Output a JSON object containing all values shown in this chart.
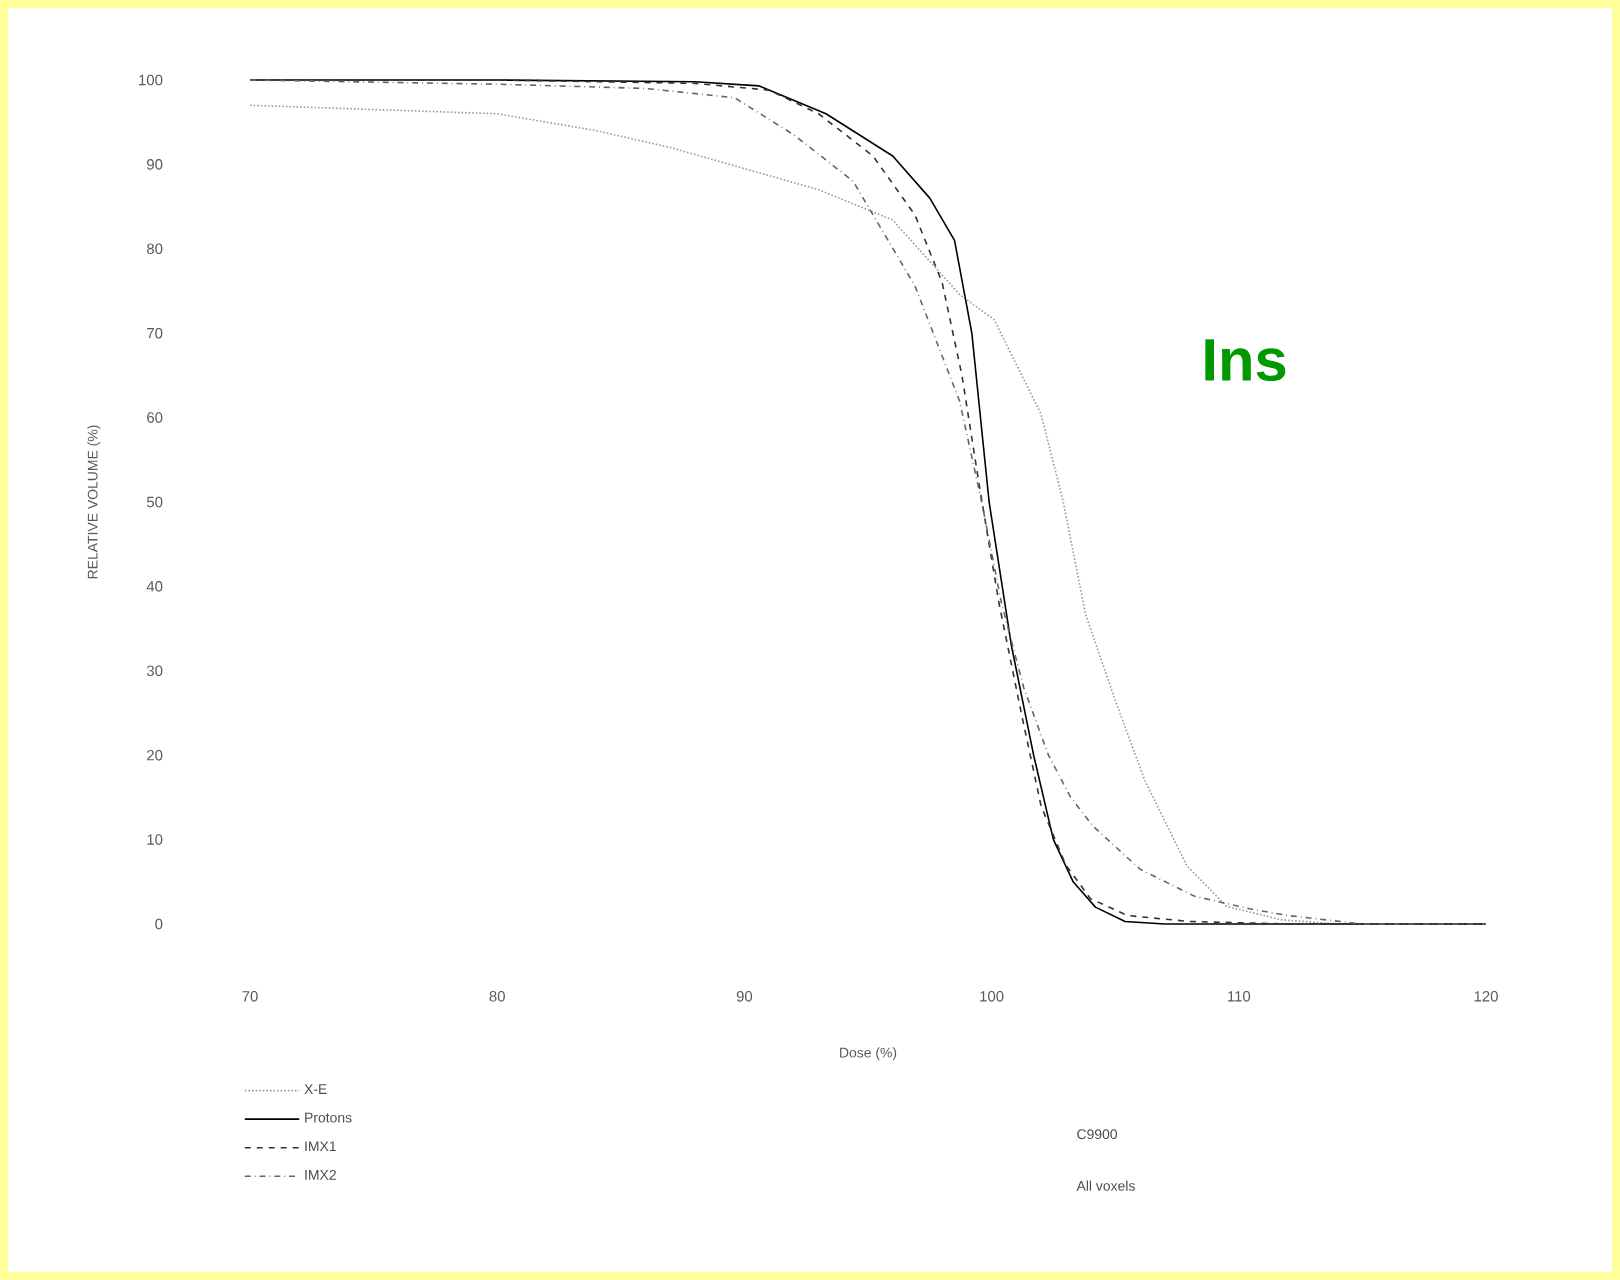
{
  "chart_data": {
    "type": "line",
    "xlabel": "Dose (%)",
    "ylabel": "RELATIVE VOLUME (%)",
    "xlim": [
      70,
      120
    ],
    "ylim": [
      0,
      100
    ],
    "xticks": [
      70,
      80,
      90,
      100,
      110,
      120
    ],
    "yticks": [
      0,
      10,
      20,
      30,
      40,
      50,
      60,
      70,
      80,
      90,
      100
    ],
    "legend": "bottom left",
    "annotations": [
      "Ins",
      "C9900",
      "All voxels"
    ],
    "series": [
      {
        "name": "X-E",
        "color": "#999999",
        "line_style": "dotted",
        "x": [
          70,
          75,
          80,
          84,
          87,
          90.6,
          93,
          96,
          98.7,
          100.1,
          102,
          102.9,
          103.8,
          105,
          106.2,
          107.9,
          109.5,
          111.7,
          114,
          118,
          120
        ],
        "values": [
          97,
          96.5,
          96,
          94,
          92,
          89,
          87,
          83.4,
          74.6,
          71.6,
          60.4,
          50,
          36.7,
          26.5,
          17,
          6.9,
          2.1,
          0.5,
          0,
          0,
          0
        ]
      },
      {
        "name": "Protons",
        "color": "#000000",
        "line_style": "solid",
        "x": [
          70,
          80,
          88,
          90.6,
          93.3,
          96,
          97.5,
          98.5,
          99.2,
          99.9,
          100.8,
          101.7,
          102.5,
          103.3,
          104.2,
          105.4,
          107,
          112,
          120
        ],
        "values": [
          100,
          100,
          99.8,
          99.3,
          96,
          91,
          86,
          81,
          70,
          50,
          33,
          20,
          10,
          5,
          2,
          0.3,
          0,
          0,
          0
        ]
      },
      {
        "name": "IMX1",
        "color": "#333333",
        "line_style": "dashed",
        "x": [
          70,
          80,
          88,
          91,
          93,
          95.2,
          96.9,
          98,
          98.8,
          99.5,
          100.3,
          101.2,
          102,
          103,
          104,
          105.5,
          108,
          112,
          120
        ],
        "values": [
          100,
          100,
          99.6,
          98.8,
          96,
          91,
          84,
          76,
          65,
          52,
          38,
          25,
          14,
          7,
          3,
          1,
          0.3,
          0,
          0
        ]
      },
      {
        "name": "IMX2",
        "color": "#666666",
        "line_style": "dashdotted",
        "x": [
          70,
          80,
          86,
          89.6,
          92,
          94.4,
          96.9,
          98.7,
          99.6,
          100.4,
          101.3,
          102.3,
          103.2,
          104.1,
          106,
          108.2,
          110.6,
          112,
          115,
          120
        ],
        "values": [
          100,
          99.5,
          99,
          97.9,
          93.5,
          88,
          75.6,
          62,
          50,
          38,
          28,
          20,
          15,
          11.6,
          6.5,
          3.3,
          1.7,
          1,
          0,
          0
        ]
      }
    ]
  }
}
